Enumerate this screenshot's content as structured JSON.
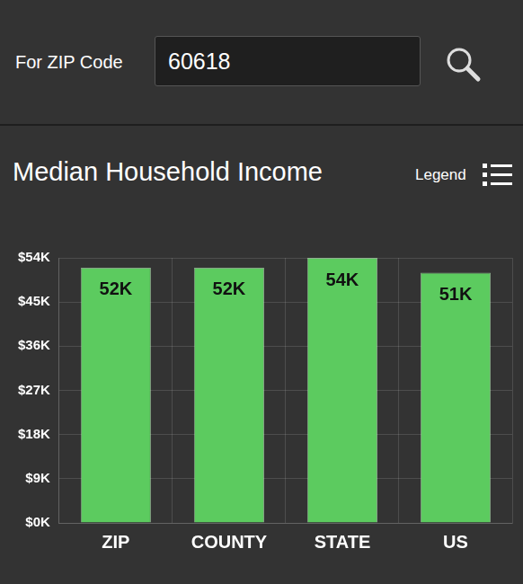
{
  "search": {
    "label": "For ZIP Code",
    "value": "60618"
  },
  "panel": {
    "legend_button": "Legend"
  },
  "chart_data": {
    "type": "bar",
    "title": "Median Household Income",
    "categories": [
      "ZIP",
      "COUNTY",
      "STATE",
      "US"
    ],
    "values": [
      52,
      52,
      54,
      51
    ],
    "value_labels": [
      "52K",
      "52K",
      "54K",
      "51K"
    ],
    "color": "#5ccb5f",
    "ylim": [
      0,
      54
    ],
    "yticks": [
      {
        "value": 0,
        "label": "$0K"
      },
      {
        "value": 9,
        "label": "$9K"
      },
      {
        "value": 18,
        "label": "$18K"
      },
      {
        "value": 27,
        "label": "$27K"
      },
      {
        "value": 36,
        "label": "$36K"
      },
      {
        "value": 45,
        "label": "$45K"
      },
      {
        "value": 54,
        "label": "$54K"
      }
    ],
    "grid": true,
    "data_labels": true
  }
}
